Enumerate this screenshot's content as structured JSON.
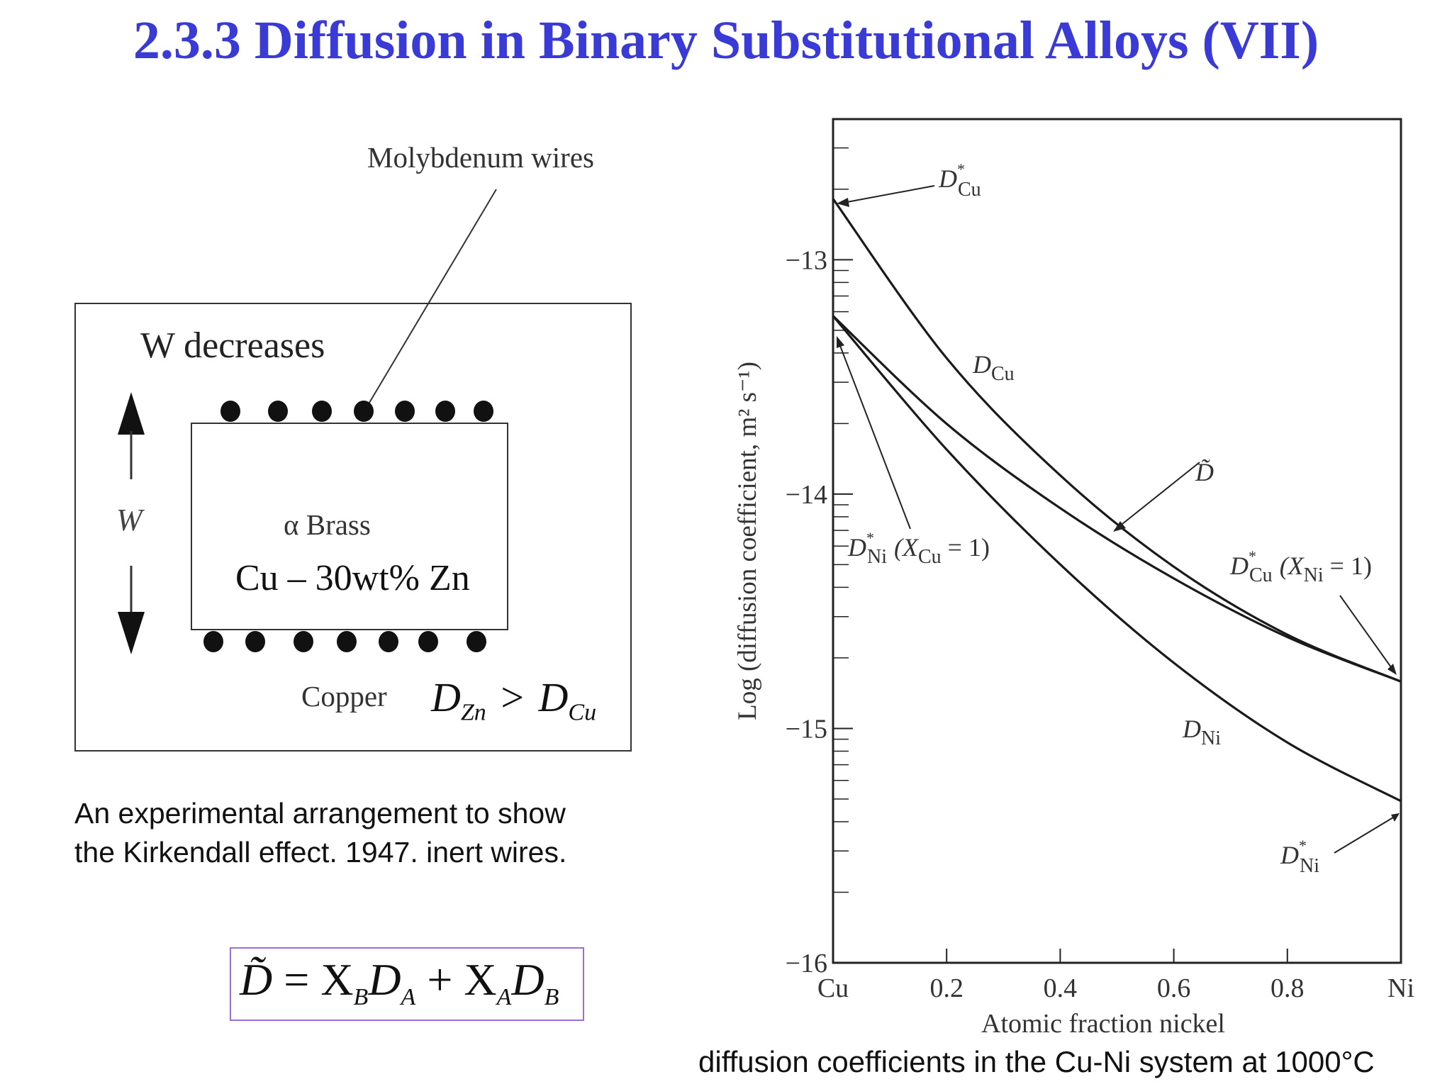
{
  "slide": {
    "title": "2.3.3 Diffusion in Binary Substitutional Alloys (VII)"
  },
  "kirkendall": {
    "wires_label": "Molybdenum wires",
    "w_decreases": "W decreases",
    "w_symbol": "W",
    "alpha_brass": "α Brass",
    "composition": "Cu – 30wt% Zn",
    "copper": "Copper",
    "d_zn": "D",
    "d_zn_sub": "Zn",
    "gt": ">",
    "d_cu": "D",
    "d_cu_sub": "Cu",
    "wires_top_count": 7,
    "wires_bottom_count": 7,
    "caption_line1": "An experimental arrangement to show",
    "caption_line2": "the Kirkendall effect. 1947. inert wires."
  },
  "formula": {
    "text": "D̃ = XBDA + XADB",
    "d_tilde": "D̃",
    "eq": "=",
    "x1": "X",
    "x1_sub": "B",
    "d1": "D",
    "d1_sub": "A",
    "plus": "+",
    "x2": "X",
    "x2_sub": "A",
    "d2": "D",
    "d2_sub": "B"
  },
  "chart_caption": "diffusion coefficients in the Cu-Ni system at 1000°C",
  "chart_data": {
    "type": "line",
    "title": "",
    "xlabel": "Atomic fraction nickel",
    "ylabel": "Log (diffusion coefficient, m² s⁻¹)",
    "xlim": [
      0,
      1
    ],
    "ylim": [
      -16,
      -12.4
    ],
    "x_ticks": [
      0,
      0.2,
      0.4,
      0.6,
      0.8,
      1.0
    ],
    "x_tick_labels": [
      "Cu",
      "0.2",
      "0.4",
      "0.6",
      "0.8",
      "Ni"
    ],
    "y_ticks": [
      -13,
      -14,
      -15,
      -16
    ],
    "y_tick_labels": [
      "−13",
      "−14",
      "−15",
      "−16"
    ],
    "grid": false,
    "x": [
      0,
      0.2,
      0.4,
      0.6,
      0.8,
      1.0
    ],
    "series": [
      {
        "name": "D_Cu",
        "values": [
          -12.74,
          -13.42,
          -13.92,
          -14.31,
          -14.6,
          -14.8
        ]
      },
      {
        "name": "D̃",
        "values": [
          -13.24,
          -13.7,
          -14.06,
          -14.36,
          -14.61,
          -14.8
        ]
      },
      {
        "name": "D_Ni",
        "values": [
          -13.24,
          -13.81,
          -14.3,
          -14.72,
          -15.06,
          -15.31
        ]
      }
    ],
    "annotations": [
      {
        "label": "D*Cu",
        "points_to": [
          0,
          -12.74
        ]
      },
      {
        "label": "DCu",
        "near": [
          0.26,
          -13.46
        ]
      },
      {
        "label": "D̃",
        "points_to": [
          0.49,
          -14.15
        ]
      },
      {
        "label": "D*Ni (XCu = 1)",
        "points_to": [
          0,
          -13.32
        ]
      },
      {
        "label": "D*Cu (XNi = 1)",
        "points_to": [
          1.0,
          -14.76
        ]
      },
      {
        "label": "DNi",
        "near": [
          0.65,
          -15.02
        ]
      },
      {
        "label": "D*Ni",
        "points_to": [
          1.0,
          -15.37
        ]
      }
    ]
  }
}
